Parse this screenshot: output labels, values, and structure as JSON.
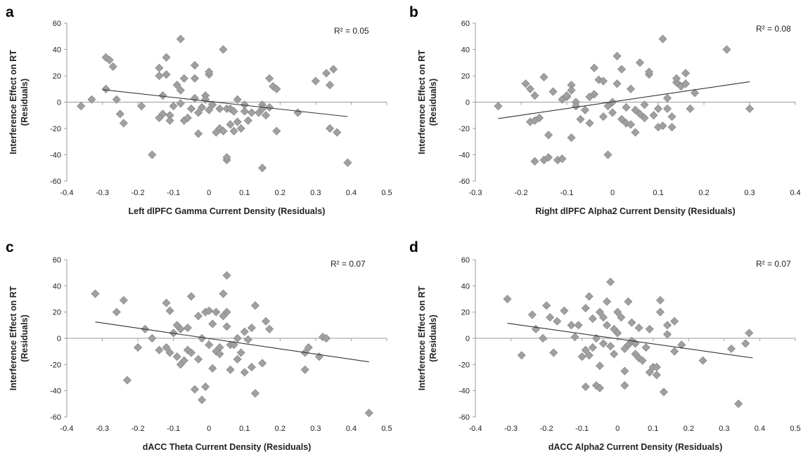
{
  "figure": {
    "colors": {
      "marker_fill": "#a0a0a0",
      "marker_stroke": "#8a8a8a",
      "trend": "#333333",
      "axis": "#9a9a9a"
    }
  },
  "chart_data": [
    {
      "type": "scatter",
      "panel_label": "a",
      "xlabel": "Left dlPFC Gamma Current Density (Residuals)",
      "ylabel_line1": "Interference Effect on RT",
      "ylabel_line2": "(Residuals)",
      "xlim": [
        -0.4,
        0.5
      ],
      "x_ticks": [
        -0.4,
        -0.3,
        -0.2,
        -0.1,
        0,
        0.1,
        0.2,
        0.3,
        0.4,
        0.5
      ],
      "ylim": [
        -60,
        60
      ],
      "y_ticks": [
        -60,
        -40,
        -20,
        0,
        20,
        40,
        60
      ],
      "annotation": "R² = 0.05",
      "trendline": [
        [
          -0.3,
          9.5
        ],
        [
          0.39,
          -11
        ]
      ],
      "grid": false,
      "points": [
        [
          -0.36,
          -3
        ],
        [
          -0.33,
          2
        ],
        [
          -0.29,
          34
        ],
        [
          -0.29,
          10
        ],
        [
          -0.28,
          32
        ],
        [
          -0.27,
          27
        ],
        [
          -0.26,
          2
        ],
        [
          -0.25,
          -9
        ],
        [
          -0.24,
          -16
        ],
        [
          -0.19,
          -3
        ],
        [
          -0.16,
          -40
        ],
        [
          -0.14,
          20
        ],
        [
          -0.14,
          26
        ],
        [
          -0.14,
          -12
        ],
        [
          -0.13,
          5
        ],
        [
          -0.13,
          -9
        ],
        [
          -0.12,
          34
        ],
        [
          -0.12,
          21
        ],
        [
          -0.11,
          -10
        ],
        [
          -0.11,
          -14
        ],
        [
          -0.1,
          -3
        ],
        [
          -0.09,
          13
        ],
        [
          -0.08,
          48
        ],
        [
          -0.08,
          9
        ],
        [
          -0.08,
          -1
        ],
        [
          -0.07,
          18
        ],
        [
          -0.07,
          -14
        ],
        [
          -0.06,
          -12
        ],
        [
          -0.05,
          -5
        ],
        [
          -0.04,
          28
        ],
        [
          -0.04,
          18
        ],
        [
          -0.04,
          3
        ],
        [
          -0.03,
          -24
        ],
        [
          -0.03,
          -8
        ],
        [
          -0.02,
          -4
        ],
        [
          -0.01,
          5
        ],
        [
          -0.01,
          2
        ],
        [
          0,
          -6
        ],
        [
          0,
          21
        ],
        [
          0,
          23
        ],
        [
          0.01,
          -2
        ],
        [
          0.02,
          -23
        ],
        [
          0.03,
          -20
        ],
        [
          0.03,
          -5
        ],
        [
          0.04,
          40
        ],
        [
          0.04,
          -22
        ],
        [
          0.05,
          -5
        ],
        [
          0.05,
          -44
        ],
        [
          0.05,
          -42
        ],
        [
          0.06,
          -5
        ],
        [
          0.06,
          -17
        ],
        [
          0.07,
          -7
        ],
        [
          0.07,
          -22
        ],
        [
          0.08,
          2
        ],
        [
          0.08,
          -15
        ],
        [
          0.09,
          -20
        ],
        [
          0.1,
          -7
        ],
        [
          0.1,
          -2
        ],
        [
          0.11,
          -14
        ],
        [
          0.12,
          -8
        ],
        [
          0.14,
          -8
        ],
        [
          0.15,
          -50
        ],
        [
          0.15,
          -2
        ],
        [
          0.15,
          -5
        ],
        [
          0.16,
          -10
        ],
        [
          0.17,
          -4
        ],
        [
          0.17,
          18
        ],
        [
          0.18,
          12
        ],
        [
          0.19,
          10
        ],
        [
          0.19,
          -22
        ],
        [
          0.25,
          -8
        ],
        [
          0.3,
          16
        ],
        [
          0.33,
          22
        ],
        [
          0.34,
          13
        ],
        [
          0.34,
          -20
        ],
        [
          0.35,
          25
        ],
        [
          0.36,
          -23
        ],
        [
          0.39,
          -46
        ]
      ]
    },
    {
      "type": "scatter",
      "panel_label": "b",
      "xlabel": "Right dlPFC Alpha2 Current Density (Residuals)",
      "ylabel_line1": "Interference Effect on RT",
      "ylabel_line2": "(Residuals)",
      "xlim": [
        -0.3,
        0.4
      ],
      "x_ticks": [
        -0.3,
        -0.2,
        -0.1,
        0,
        0.1,
        0.2,
        0.3,
        0.4
      ],
      "ylim": [
        -60,
        60
      ],
      "y_ticks": [
        -60,
        -40,
        -20,
        0,
        20,
        40,
        60
      ],
      "annotation": "R² = 0.08",
      "trendline": [
        [
          -0.25,
          -12.5
        ],
        [
          0.3,
          15.5
        ]
      ],
      "grid": false,
      "points": [
        [
          -0.25,
          -3
        ],
        [
          -0.19,
          14
        ],
        [
          -0.18,
          -15
        ],
        [
          -0.18,
          10
        ],
        [
          -0.17,
          -14
        ],
        [
          -0.17,
          5
        ],
        [
          -0.17,
          -45
        ],
        [
          -0.16,
          -12
        ],
        [
          -0.15,
          19
        ],
        [
          -0.15,
          -44
        ],
        [
          -0.14,
          -25
        ],
        [
          -0.14,
          -42
        ],
        [
          -0.13,
          8
        ],
        [
          -0.12,
          -44
        ],
        [
          -0.11,
          -43
        ],
        [
          -0.11,
          2
        ],
        [
          -0.1,
          4
        ],
        [
          -0.1,
          5
        ],
        [
          -0.09,
          13
        ],
        [
          -0.09,
          -27
        ],
        [
          -0.09,
          9
        ],
        [
          -0.08,
          0
        ],
        [
          -0.08,
          -3
        ],
        [
          -0.07,
          -13
        ],
        [
          -0.06,
          -6
        ],
        [
          -0.05,
          4
        ],
        [
          -0.05,
          -16
        ],
        [
          -0.04,
          6
        ],
        [
          -0.04,
          26
        ],
        [
          -0.03,
          17
        ],
        [
          -0.02,
          -11
        ],
        [
          -0.02,
          16
        ],
        [
          -0.01,
          -40
        ],
        [
          -0.01,
          -3
        ],
        [
          0,
          0
        ],
        [
          0,
          -8
        ],
        [
          0.01,
          14
        ],
        [
          0.01,
          35
        ],
        [
          0.02,
          -13
        ],
        [
          0.02,
          25
        ],
        [
          0.03,
          -16
        ],
        [
          0.03,
          -4
        ],
        [
          0.04,
          -17
        ],
        [
          0.04,
          10
        ],
        [
          0.05,
          -6
        ],
        [
          0.05,
          -23
        ],
        [
          0.06,
          30
        ],
        [
          0.06,
          -9
        ],
        [
          0.07,
          -12
        ],
        [
          0.07,
          -2
        ],
        [
          0.08,
          21
        ],
        [
          0.08,
          23
        ],
        [
          0.09,
          -10
        ],
        [
          0.1,
          -5
        ],
        [
          0.1,
          -19
        ],
        [
          0.11,
          -18
        ],
        [
          0.11,
          48
        ],
        [
          0.12,
          -5
        ],
        [
          0.12,
          3
        ],
        [
          0.13,
          -19
        ],
        [
          0.13,
          -11
        ],
        [
          0.14,
          15
        ],
        [
          0.14,
          18
        ],
        [
          0.15,
          12
        ],
        [
          0.16,
          14
        ],
        [
          0.16,
          22
        ],
        [
          0.17,
          -5
        ],
        [
          0.18,
          7
        ],
        [
          0.25,
          40
        ],
        [
          0.3,
          -5
        ]
      ]
    },
    {
      "type": "scatter",
      "panel_label": "c",
      "xlabel": "dACC Theta Current Density (Residuals)",
      "ylabel_line1": "Interference Effect on RT",
      "ylabel_line2": "(Residuals)",
      "xlim": [
        -0.4,
        0.5
      ],
      "x_ticks": [
        -0.4,
        -0.3,
        -0.2,
        -0.1,
        0,
        0.1,
        0.2,
        0.3,
        0.4,
        0.5
      ],
      "ylim": [
        -60,
        60
      ],
      "y_ticks": [
        -60,
        -40,
        -20,
        0,
        20,
        40,
        60
      ],
      "annotation": "R² = 0.07",
      "trendline": [
        [
          -0.32,
          12.5
        ],
        [
          0.45,
          -18
        ]
      ],
      "grid": false,
      "points": [
        [
          -0.32,
          34
        ],
        [
          -0.26,
          20
        ],
        [
          -0.24,
          29
        ],
        [
          -0.23,
          -32
        ],
        [
          -0.2,
          -7
        ],
        [
          -0.18,
          7
        ],
        [
          -0.16,
          0
        ],
        [
          -0.14,
          -9
        ],
        [
          -0.12,
          27
        ],
        [
          -0.12,
          -7
        ],
        [
          -0.11,
          21
        ],
        [
          -0.11,
          -11
        ],
        [
          -0.1,
          4
        ],
        [
          -0.09,
          -14
        ],
        [
          -0.09,
          10
        ],
        [
          -0.08,
          -20
        ],
        [
          -0.08,
          7
        ],
        [
          -0.07,
          -17
        ],
        [
          -0.06,
          -9
        ],
        [
          -0.06,
          8
        ],
        [
          -0.05,
          -11
        ],
        [
          -0.05,
          32
        ],
        [
          -0.04,
          -39
        ],
        [
          -0.03,
          -16
        ],
        [
          -0.03,
          17
        ],
        [
          -0.02,
          -47
        ],
        [
          -0.02,
          0
        ],
        [
          -0.01,
          -37
        ],
        [
          -0.01,
          20
        ],
        [
          0,
          -5
        ],
        [
          0,
          21
        ],
        [
          0.01,
          -23
        ],
        [
          0.01,
          11
        ],
        [
          0.02,
          -10
        ],
        [
          0.02,
          20
        ],
        [
          0.03,
          -7
        ],
        [
          0.03,
          -12
        ],
        [
          0.04,
          17
        ],
        [
          0.04,
          34
        ],
        [
          0.05,
          48
        ],
        [
          0.05,
          9
        ],
        [
          0.05,
          20
        ],
        [
          0.06,
          -24
        ],
        [
          0.06,
          -5
        ],
        [
          0.07,
          -5
        ],
        [
          0.08,
          -16
        ],
        [
          0.08,
          0
        ],
        [
          0.09,
          -11
        ],
        [
          0.1,
          -26
        ],
        [
          0.1,
          5
        ],
        [
          0.11,
          -1
        ],
        [
          0.12,
          -22
        ],
        [
          0.12,
          8
        ],
        [
          0.13,
          25
        ],
        [
          0.13,
          -42
        ],
        [
          0.15,
          -19
        ],
        [
          0.16,
          13
        ],
        [
          0.17,
          7
        ],
        [
          0.27,
          -24
        ],
        [
          0.27,
          -11
        ],
        [
          0.28,
          -7
        ],
        [
          0.31,
          -14
        ],
        [
          0.32,
          1
        ],
        [
          0.33,
          0
        ],
        [
          0.45,
          -57
        ]
      ]
    },
    {
      "type": "scatter",
      "panel_label": "d",
      "xlabel": "dACC Alpha2 Current Density (Residuals)",
      "ylabel_line1": "Interference Effect on RT",
      "ylabel_line2": "(Residuals)",
      "xlim": [
        -0.4,
        0.5
      ],
      "x_ticks": [
        -0.4,
        -0.3,
        -0.2,
        -0.1,
        0,
        0.1,
        0.2,
        0.3,
        0.4,
        0.5
      ],
      "ylim": [
        -60,
        60
      ],
      "y_ticks": [
        -60,
        -40,
        -20,
        0,
        20,
        40,
        60
      ],
      "annotation": "R² = 0.07",
      "trendline": [
        [
          -0.31,
          11.5
        ],
        [
          0.38,
          -15
        ]
      ],
      "grid": false,
      "points": [
        [
          -0.31,
          30
        ],
        [
          -0.27,
          -13
        ],
        [
          -0.24,
          18
        ],
        [
          -0.23,
          7
        ],
        [
          -0.21,
          0
        ],
        [
          -0.2,
          25
        ],
        [
          -0.19,
          16
        ],
        [
          -0.18,
          -11
        ],
        [
          -0.17,
          13
        ],
        [
          -0.15,
          21
        ],
        [
          -0.13,
          10
        ],
        [
          -0.12,
          1
        ],
        [
          -0.11,
          10
        ],
        [
          -0.1,
          -14
        ],
        [
          -0.09,
          -37
        ],
        [
          -0.09,
          -9
        ],
        [
          -0.09,
          23
        ],
        [
          -0.08,
          -13
        ],
        [
          -0.08,
          32
        ],
        [
          -0.07,
          -7
        ],
        [
          -0.07,
          15
        ],
        [
          -0.06,
          0
        ],
        [
          -0.06,
          -36
        ],
        [
          -0.05,
          -38
        ],
        [
          -0.05,
          -21
        ],
        [
          -0.05,
          20
        ],
        [
          -0.04,
          -4
        ],
        [
          -0.04,
          16
        ],
        [
          -0.03,
          28
        ],
        [
          -0.03,
          10
        ],
        [
          -0.02,
          -6
        ],
        [
          -0.02,
          43
        ],
        [
          -0.01,
          -12
        ],
        [
          -0.01,
          7
        ],
        [
          0,
          4
        ],
        [
          0,
          20
        ],
        [
          0.01,
          16
        ],
        [
          0.02,
          -25
        ],
        [
          0.02,
          -8
        ],
        [
          0.02,
          -36
        ],
        [
          0.03,
          -5
        ],
        [
          0.03,
          28
        ],
        [
          0.04,
          12
        ],
        [
          0.04,
          -2
        ],
        [
          0.05,
          -12
        ],
        [
          0.05,
          -4
        ],
        [
          0.06,
          8
        ],
        [
          0.06,
          -15
        ],
        [
          0.07,
          -17
        ],
        [
          0.08,
          -7
        ],
        [
          0.09,
          -26
        ],
        [
          0.09,
          7
        ],
        [
          0.1,
          -22
        ],
        [
          0.11,
          -28
        ],
        [
          0.11,
          -22
        ],
        [
          0.12,
          29
        ],
        [
          0.12,
          20
        ],
        [
          0.13,
          -41
        ],
        [
          0.14,
          3
        ],
        [
          0.14,
          10
        ],
        [
          0.16,
          -10
        ],
        [
          0.16,
          13
        ],
        [
          0.18,
          -5
        ],
        [
          0.24,
          -17
        ],
        [
          0.32,
          -8
        ],
        [
          0.34,
          -50
        ],
        [
          0.36,
          -4
        ],
        [
          0.37,
          4
        ]
      ]
    }
  ]
}
